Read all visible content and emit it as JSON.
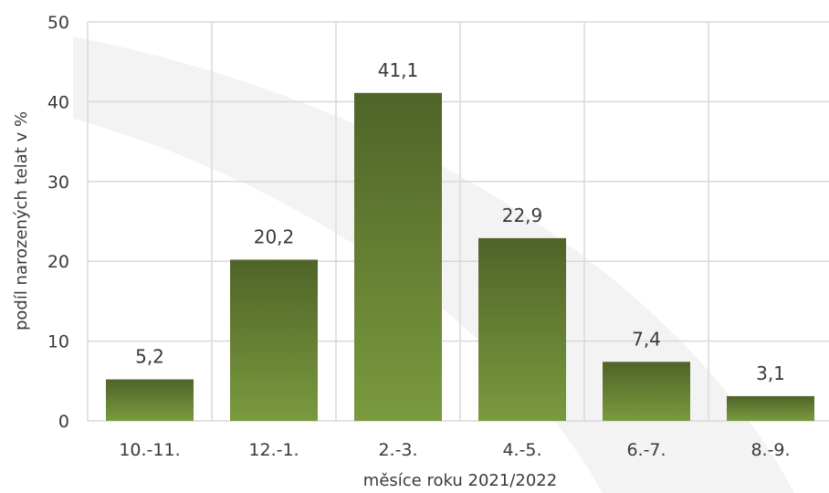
{
  "chart_data": {
    "type": "bar",
    "categories": [
      "10.-11.",
      "12.-1.",
      "2.-3.",
      "4.-5.",
      "6.-7.",
      "8.-9."
    ],
    "values": [
      5.2,
      20.2,
      41.1,
      22.9,
      7.4,
      3.1
    ],
    "data_labels": [
      "5,2",
      "20,2",
      "41,1",
      "22,9",
      "7,4",
      "3,1"
    ],
    "xlabel": "měsíce roku 2021/2022",
    "ylabel": "podíl narozených telat v %",
    "ylim": [
      0,
      50
    ],
    "yticks": [
      0,
      10,
      20,
      30,
      40,
      50
    ],
    "grid": true,
    "legend": "none",
    "colors": {
      "bar_top": "#4f6428",
      "bar_bottom": "#7a9a3e",
      "grid": "#d9d9d9",
      "watermark": "#f3f3f3"
    }
  }
}
